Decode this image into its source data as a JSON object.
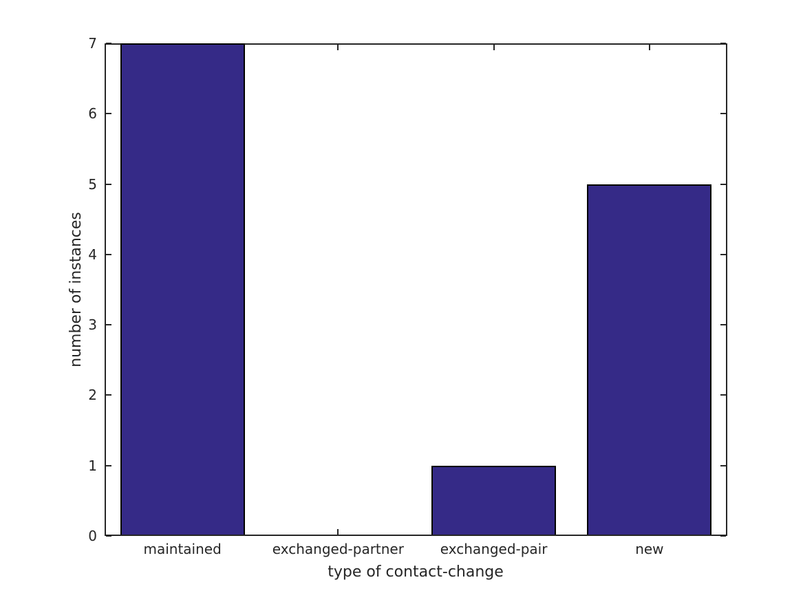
{
  "chart_data": {
    "type": "bar",
    "categories": [
      "maintained",
      "exchanged-partner",
      "exchanged-pair",
      "new"
    ],
    "values": [
      7,
      0,
      1,
      5
    ],
    "title": "",
    "xlabel": "type of contact-change",
    "ylabel": "number of instances",
    "ylim": [
      0,
      7
    ],
    "yticks": [
      0,
      1,
      2,
      3,
      4,
      5,
      6,
      7
    ],
    "bar_width_fraction": 0.8,
    "grid": false,
    "legend": "none",
    "colors": {
      "bar_fill": "#352a87",
      "bar_edge": "#000000",
      "axis": "#262626",
      "text": "#262626",
      "background": "#ffffff"
    }
  }
}
